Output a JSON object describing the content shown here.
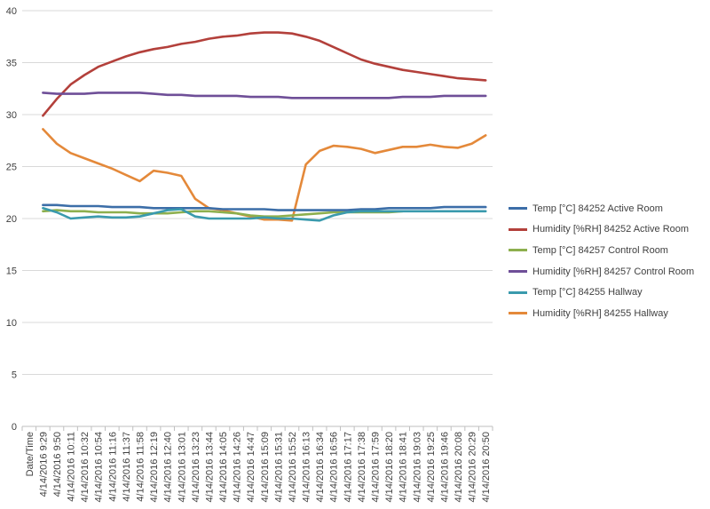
{
  "chart_data": {
    "type": "line",
    "x": [
      "Date/Time",
      "4/14/2016 9:29",
      "4/14/2016 9:50",
      "4/14/2016 10:11",
      "4/14/2016 10:32",
      "4/14/2016 10:54",
      "4/14/2016 11:16",
      "4/14/2016 11:37",
      "4/14/2016 11:58",
      "4/14/2016 12:19",
      "4/14/2016 12:40",
      "4/14/2016 13:01",
      "4/14/2016 13:23",
      "4/14/2016 13:44",
      "4/14/2016 14:05",
      "4/14/2016 14:26",
      "4/14/2016 14:47",
      "4/14/2016 15:09",
      "4/14/2016 15:31",
      "4/14/2016 15:52",
      "4/14/2016 16:13",
      "4/14/2016 16:34",
      "4/14/2016 16:56",
      "4/14/2016 17:17",
      "4/14/2016 17:38",
      "4/14/2016 17:59",
      "4/14/2016 18:20",
      "4/14/2016 18:41",
      "4/14/2016 19:03",
      "4/14/2016 19:25",
      "4/14/2016 19:46",
      "4/14/2016 20:08",
      "4/14/2016 20:29",
      "4/14/2016 20:50"
    ],
    "ylim": [
      0,
      40
    ],
    "yticks": [
      "0",
      "5",
      "10",
      "15",
      "20",
      "25",
      "30",
      "35",
      "40"
    ],
    "grid": true,
    "legend_position": "right",
    "series": [
      {
        "name": "Temp [°C] 84252 Active Room",
        "color": "#3C6EA8",
        "values": [
          null,
          21.3,
          21.3,
          21.2,
          21.2,
          21.2,
          21.1,
          21.1,
          21.1,
          21.0,
          21.0,
          21.0,
          21.0,
          21.0,
          20.9,
          20.9,
          20.9,
          20.9,
          20.8,
          20.8,
          20.8,
          20.8,
          20.8,
          20.8,
          20.9,
          20.9,
          21.0,
          21.0,
          21.0,
          21.0,
          21.1,
          21.1,
          21.1,
          21.1
        ]
      },
      {
        "name": "Humidity [%RH] 84252 Active Room",
        "color": "#B3403B",
        "values": [
          null,
          29.9,
          31.5,
          32.9,
          33.8,
          34.6,
          35.1,
          35.6,
          36.0,
          36.3,
          36.5,
          36.8,
          37.0,
          37.3,
          37.5,
          37.6,
          37.8,
          37.9,
          37.9,
          37.8,
          37.5,
          37.1,
          36.5,
          35.9,
          35.3,
          34.9,
          34.6,
          34.3,
          34.1,
          33.9,
          33.7,
          33.5,
          33.4,
          33.3
        ]
      },
      {
        "name": "Temp [°C] 84257 Control Room",
        "color": "#8DAF4E",
        "values": [
          null,
          20.7,
          20.8,
          20.7,
          20.7,
          20.6,
          20.6,
          20.6,
          20.5,
          20.5,
          20.5,
          20.6,
          20.7,
          20.7,
          20.6,
          20.5,
          20.3,
          20.2,
          20.2,
          20.3,
          20.4,
          20.5,
          20.6,
          20.6,
          20.6,
          20.6,
          20.6,
          20.7,
          null,
          null,
          null,
          null,
          null,
          null
        ]
      },
      {
        "name": "Humidity [%RH] 84257 Control Room",
        "color": "#6F4F98",
        "values": [
          null,
          32.1,
          32.0,
          32.0,
          32.0,
          32.1,
          32.1,
          32.1,
          32.1,
          32.0,
          31.9,
          31.9,
          31.8,
          31.8,
          31.8,
          31.8,
          31.7,
          31.7,
          31.7,
          31.6,
          31.6,
          31.6,
          31.6,
          31.6,
          31.6,
          31.6,
          31.6,
          31.7,
          31.7,
          31.7,
          31.8,
          31.8,
          31.8,
          31.8
        ]
      },
      {
        "name": "Temp [°C] 84255 Hallway",
        "color": "#3A9AAD",
        "values": [
          null,
          21.0,
          20.6,
          20.0,
          20.1,
          20.2,
          20.1,
          20.1,
          20.2,
          20.5,
          20.8,
          20.9,
          20.2,
          20.0,
          20.0,
          20.0,
          20.0,
          20.1,
          20.0,
          20.0,
          19.9,
          19.8,
          20.3,
          20.6,
          20.7,
          20.7,
          20.7,
          20.7,
          20.7,
          20.7,
          20.7,
          20.7,
          20.7,
          20.7
        ]
      },
      {
        "name": "Humidity [%RH] 84255 Hallway",
        "color": "#E4893A",
        "values": [
          null,
          28.6,
          27.2,
          26.3,
          25.8,
          25.3,
          24.8,
          24.2,
          23.6,
          24.6,
          24.4,
          24.1,
          21.9,
          21.0,
          20.8,
          20.5,
          20.2,
          19.9,
          19.9,
          19.8,
          25.2,
          26.5,
          27.0,
          26.9,
          26.7,
          26.3,
          26.6,
          26.9,
          26.9,
          27.1,
          26.9,
          26.8,
          27.2,
          28.0
        ]
      }
    ]
  }
}
